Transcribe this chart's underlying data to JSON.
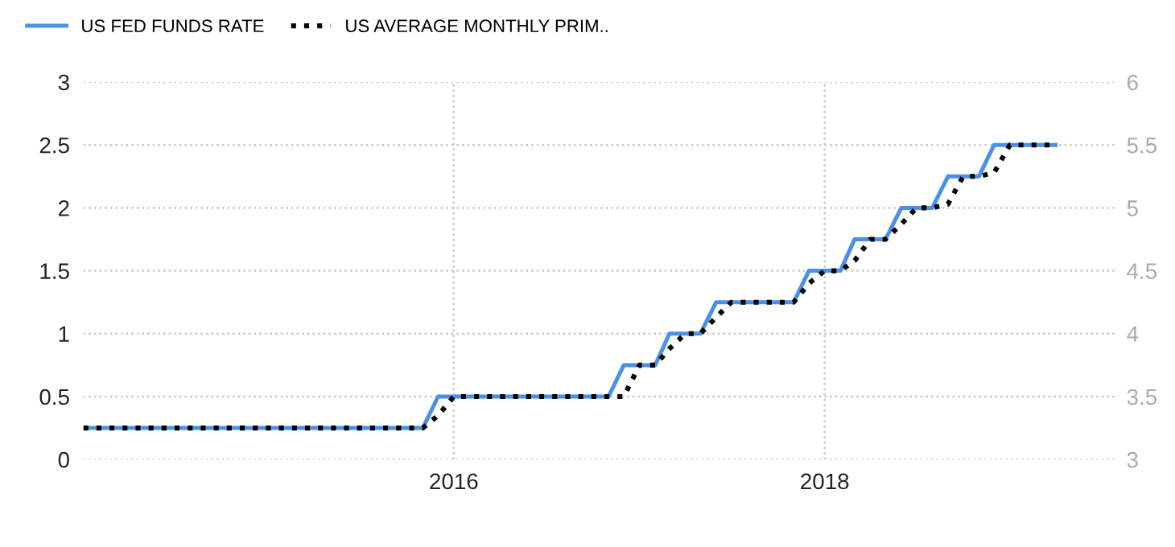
{
  "chart_data": {
    "type": "line",
    "x": [
      "2014-01",
      "2014-02",
      "2014-03",
      "2014-04",
      "2014-05",
      "2014-06",
      "2014-07",
      "2014-08",
      "2014-09",
      "2014-10",
      "2014-11",
      "2014-12",
      "2015-01",
      "2015-02",
      "2015-03",
      "2015-04",
      "2015-05",
      "2015-06",
      "2015-07",
      "2015-08",
      "2015-09",
      "2015-10",
      "2015-11",
      "2015-12",
      "2016-01",
      "2016-02",
      "2016-03",
      "2016-04",
      "2016-05",
      "2016-06",
      "2016-07",
      "2016-08",
      "2016-09",
      "2016-10",
      "2016-11",
      "2016-12",
      "2017-01",
      "2017-02",
      "2017-03",
      "2017-04",
      "2017-05",
      "2017-06",
      "2017-07",
      "2017-08",
      "2017-09",
      "2017-10",
      "2017-11",
      "2017-12",
      "2018-01",
      "2018-02",
      "2018-03",
      "2018-04",
      "2018-05",
      "2018-06",
      "2018-07",
      "2018-08",
      "2018-09",
      "2018-10",
      "2018-11",
      "2018-12",
      "2019-01",
      "2019-02",
      "2019-03",
      "2019-04"
    ],
    "series": [
      {
        "name": "US FED FUNDS RATE",
        "color": "#4a90e8",
        "line_style": "solid",
        "values": [
          0.25,
          0.25,
          0.25,
          0.25,
          0.25,
          0.25,
          0.25,
          0.25,
          0.25,
          0.25,
          0.25,
          0.25,
          0.25,
          0.25,
          0.25,
          0.25,
          0.25,
          0.25,
          0.25,
          0.25,
          0.25,
          0.25,
          0.25,
          0.5,
          0.5,
          0.5,
          0.5,
          0.5,
          0.5,
          0.5,
          0.5,
          0.5,
          0.5,
          0.5,
          0.5,
          0.75,
          0.75,
          0.75,
          1,
          1,
          1,
          1.25,
          1.25,
          1.25,
          1.25,
          1.25,
          1.25,
          1.5,
          1.5,
          1.5,
          1.75,
          1.75,
          1.75,
          2,
          2,
          2,
          2.25,
          2.25,
          2.25,
          2.5,
          2.5,
          2.5,
          2.5,
          2.5
        ]
      },
      {
        "name": "US AVERAGE MONTHLY PRIM..",
        "color": "#000000",
        "line_style": "dotted",
        "axis": "y2",
        "values": [
          3.25,
          3.25,
          3.25,
          3.25,
          3.25,
          3.25,
          3.25,
          3.25,
          3.25,
          3.25,
          3.25,
          3.25,
          3.25,
          3.25,
          3.25,
          3.25,
          3.25,
          3.25,
          3.25,
          3.25,
          3.25,
          3.25,
          3.25,
          3.35,
          3.5,
          3.5,
          3.5,
          3.5,
          3.5,
          3.5,
          3.5,
          3.5,
          3.5,
          3.5,
          3.5,
          3.5,
          3.75,
          3.75,
          3.88,
          4,
          4,
          4.13,
          4.25,
          4.25,
          4.25,
          4.25,
          4.25,
          4.4,
          4.5,
          4.5,
          4.58,
          4.75,
          4.75,
          4.87,
          5,
          5,
          5.03,
          5.25,
          5.25,
          5.28,
          5.5,
          5.5,
          5.5,
          5.5
        ]
      }
    ],
    "xlim": [
      "2014-01",
      "2019-08"
    ],
    "xticks": [
      {
        "value": "2016-01",
        "label": "2016"
      },
      {
        "value": "2018-01",
        "label": "2018"
      }
    ],
    "ylim": [
      0,
      3
    ],
    "yticks": [
      0,
      0.5,
      1,
      1.5,
      2,
      2.5,
      3
    ],
    "y2lim": [
      3,
      6
    ],
    "y2ticks": [
      3,
      3.5,
      4,
      4.5,
      5,
      5.5,
      6
    ],
    "grid": true,
    "legend": "top left",
    "marker": "none"
  }
}
